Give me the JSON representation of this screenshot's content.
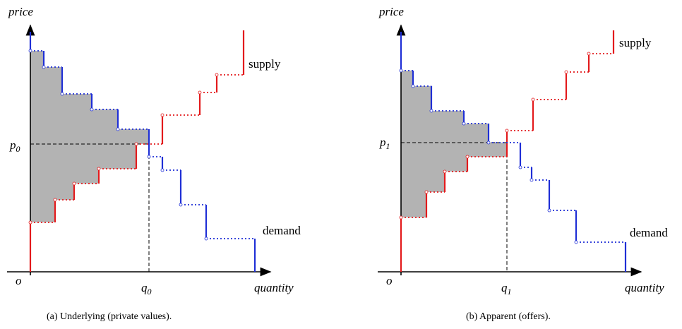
{
  "panels": [
    {
      "y_label": "price",
      "x_label": "quantity",
      "origin": "o",
      "price_label": {
        "base": "p",
        "sub": "0"
      },
      "quantity_label": {
        "base": "q",
        "sub": "0"
      },
      "supply_label": "supply",
      "demand_label": "demand",
      "caption": "(a)  Underlying (private values)."
    },
    {
      "y_label": "price",
      "x_label": "quantity",
      "origin": "o",
      "price_label": {
        "base": "p",
        "sub": "1"
      },
      "quantity_label": {
        "base": "q",
        "sub": "1"
      },
      "supply_label": "supply",
      "demand_label": "demand",
      "caption": "(b)  Apparent (offers)."
    }
  ]
}
